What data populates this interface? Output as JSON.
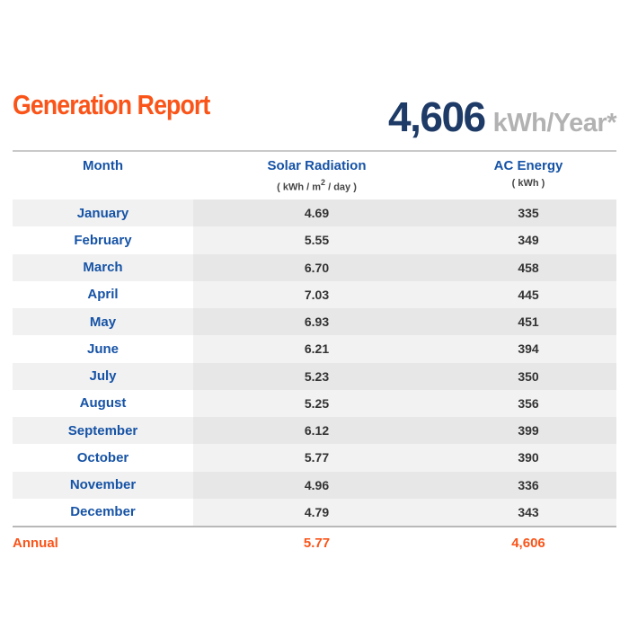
{
  "header": {
    "title": "Generation Report",
    "annual_total": "4,606",
    "annual_unit": "kWh/Year*"
  },
  "table": {
    "columns": [
      {
        "label": "Month",
        "units": ""
      },
      {
        "label": "Solar Radiation",
        "units_pre": "( kWh / m",
        "units_sup": "2",
        "units_post": " / day )"
      },
      {
        "label": "AC Energy",
        "units": "( kWh )"
      }
    ],
    "rows": [
      {
        "month": "January",
        "solar": "4.69",
        "ac": "335"
      },
      {
        "month": "February",
        "solar": "5.55",
        "ac": "349"
      },
      {
        "month": "March",
        "solar": "6.70",
        "ac": "458"
      },
      {
        "month": "April",
        "solar": "7.03",
        "ac": "445"
      },
      {
        "month": "May",
        "solar": "6.93",
        "ac": "451"
      },
      {
        "month": "June",
        "solar": "6.21",
        "ac": "394"
      },
      {
        "month": "July",
        "solar": "5.23",
        "ac": "350"
      },
      {
        "month": "August",
        "solar": "5.25",
        "ac": "356"
      },
      {
        "month": "September",
        "solar": "6.12",
        "ac": "399"
      },
      {
        "month": "October",
        "solar": "5.77",
        "ac": "390"
      },
      {
        "month": "November",
        "solar": "4.96",
        "ac": "336"
      },
      {
        "month": "December",
        "solar": "4.79",
        "ac": "343"
      }
    ],
    "annual": {
      "label": "Annual",
      "solar": "5.77",
      "ac": "4,606"
    }
  },
  "colors": {
    "accent_orange": "#fa5419",
    "navy": "#1e3a66",
    "column_blue": "#1653a6",
    "unit_gray": "#b2b2b2",
    "value_text": "#333333",
    "units_label": "#454545",
    "top_divider": "#c9c9c9",
    "annual_divider": "#b8b8b8",
    "stripe_month_odd": "#f1f1f1",
    "stripe_value_odd": "#e7e7e7",
    "stripe_month_even": "#ffffff",
    "stripe_value_even": "#f2f2f2"
  },
  "chart_data": {
    "type": "table",
    "title": "Generation Report",
    "annual_total_kwh_per_year": 4606,
    "categories": [
      "January",
      "February",
      "March",
      "April",
      "May",
      "June",
      "July",
      "August",
      "September",
      "October",
      "November",
      "December"
    ],
    "series": [
      {
        "name": "Solar Radiation ( kWh / m2 / day )",
        "values": [
          4.69,
          5.55,
          6.7,
          7.03,
          6.93,
          6.21,
          5.23,
          5.25,
          6.12,
          5.77,
          4.96,
          4.79
        ]
      },
      {
        "name": "AC Energy ( kWh )",
        "values": [
          335,
          349,
          458,
          445,
          451,
          394,
          350,
          356,
          399,
          390,
          336,
          343
        ]
      }
    ],
    "annual": {
      "solar_radiation": 5.77,
      "ac_energy": 4606
    }
  }
}
